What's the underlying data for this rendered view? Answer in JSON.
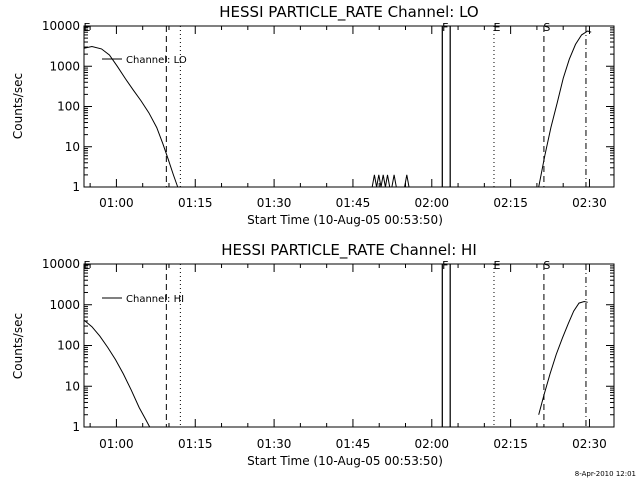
{
  "chart_data": [
    {
      "type": "line",
      "title": "HESSI PARTICLE_RATE Channel: LO",
      "xlabel": "Start Time (10-Aug-05 00:53:50)",
      "ylabel": "Counts/sec",
      "yscale": "log",
      "ylim": [
        1,
        10000
      ],
      "xlim": [
        "00:53:50",
        "02:34:40"
      ],
      "xticks": [
        "01:00",
        "01:15",
        "01:30",
        "01:45",
        "02:00",
        "02:15",
        "02:30"
      ],
      "yticks": [
        "1",
        "10",
        "100",
        "1000",
        "10000"
      ],
      "legend": "Channel: LO",
      "legend_position": "top-left",
      "grid": false,
      "series": [
        {
          "name": "Channel: LO",
          "segments": [
            {
              "x": [
                "00:53:50",
                "00:55:20",
                "00:57:10",
                "00:58:40",
                "01:00:10",
                "01:01:40",
                "01:03:10",
                "01:04:40",
                "01:06:10",
                "01:07:40",
                "01:08:50",
                "01:09:50",
                "01:10:50",
                "01:11:40"
              ],
              "y": [
                2800,
                3100,
                2700,
                1900,
                1000,
                500,
                260,
                140,
                70,
                30,
                12,
                5,
                2,
                1
              ]
            },
            {
              "x": [
                "01:48:40",
                "01:49:05",
                "01:49:30",
                "01:49:55",
                "01:50:20",
                "01:50:45",
                "01:51:10",
                "01:51:35",
                "01:52:00",
                "01:52:25",
                "01:52:50",
                "01:53:15",
                "01:53:40",
                "01:54:50",
                "01:55:15",
                "01:55:40"
              ],
              "y": [
                1,
                2,
                1,
                2,
                1,
                2,
                1,
                2,
                1,
                1,
                2,
                1,
                1,
                1,
                2,
                1
              ]
            },
            {
              "x": [
                "02:02:00",
                "02:02:00",
                "02:03:30",
                "02:03:30"
              ],
              "y": [
                1,
                10000,
                10000,
                1
              ]
            },
            {
              "x": [
                "02:20:20",
                "02:21:30",
                "02:22:40",
                "02:23:50",
                "02:25:00",
                "02:26:10",
                "02:27:20",
                "02:28:30",
                "02:29:40",
                "02:30:20"
              ],
              "y": [
                1,
                6,
                30,
                120,
                500,
                1500,
                3500,
                6000,
                7500,
                7000
              ]
            }
          ]
        }
      ],
      "markers": [
        {
          "label": "E",
          "time": "00:53:50",
          "style": "dashdot"
        },
        {
          "label": "",
          "time": "01:09:30",
          "style": "dashed"
        },
        {
          "label": "",
          "time": "01:12:10",
          "style": "dotted"
        },
        {
          "label": "F",
          "time": "02:02:00",
          "style": "solid"
        },
        {
          "label": "",
          "time": "02:03:30",
          "style": "solid"
        },
        {
          "label": "E",
          "time": "02:11:50",
          "style": "dotted"
        },
        {
          "label": "S",
          "time": "02:21:20",
          "style": "dashed"
        },
        {
          "label": "",
          "time": "02:29:20",
          "style": "dashdot"
        }
      ]
    },
    {
      "type": "line",
      "title": "HESSI PARTICLE_RATE Channel: HI",
      "xlabel": "Start Time (10-Aug-05 00:53:50)",
      "ylabel": "Counts/sec",
      "yscale": "log",
      "ylim": [
        1,
        10000
      ],
      "xlim": [
        "00:53:50",
        "02:34:40"
      ],
      "xticks": [
        "01:00",
        "01:15",
        "01:30",
        "01:45",
        "02:00",
        "02:15",
        "02:30"
      ],
      "yticks": [
        "1",
        "10",
        "100",
        "1000",
        "10000"
      ],
      "legend": "Channel: HI",
      "legend_position": "top-left",
      "grid": false,
      "series": [
        {
          "name": "Channel: HI",
          "segments": [
            {
              "x": [
                "00:53:50",
                "00:55:20",
                "00:56:50",
                "00:58:20",
                "00:59:50",
                "01:01:20",
                "01:02:50",
                "01:04:20",
                "01:05:30",
                "01:06:20"
              ],
              "y": [
                420,
                290,
                170,
                90,
                45,
                20,
                8,
                3,
                1.6,
                1
              ]
            },
            {
              "x": [
                "02:02:00",
                "02:02:00",
                "02:03:30",
                "02:03:30"
              ],
              "y": [
                1,
                10000,
                10000,
                1
              ]
            },
            {
              "x": [
                "02:20:20",
                "02:21:20",
                "02:22:30",
                "02:23:40",
                "02:24:50",
                "02:26:00",
                "02:27:00",
                "02:28:00",
                "02:29:00",
                "02:29:40"
              ],
              "y": [
                2,
                6,
                20,
                60,
                150,
                350,
                700,
                1100,
                1200,
                1150
              ]
            }
          ]
        }
      ],
      "markers": [
        {
          "label": "E",
          "time": "00:53:50",
          "style": "dashdot"
        },
        {
          "label": "",
          "time": "01:09:30",
          "style": "dashed"
        },
        {
          "label": "",
          "time": "01:12:10",
          "style": "dotted"
        },
        {
          "label": "F",
          "time": "02:02:00",
          "style": "solid"
        },
        {
          "label": "",
          "time": "02:03:30",
          "style": "solid"
        },
        {
          "label": "E",
          "time": "02:11:50",
          "style": "dotted"
        },
        {
          "label": "S",
          "time": "02:21:20",
          "style": "dashed"
        },
        {
          "label": "",
          "time": "02:29:20",
          "style": "dashdot"
        }
      ]
    }
  ],
  "footer": {
    "stamp": "8-Apr-2010 12:01"
  }
}
